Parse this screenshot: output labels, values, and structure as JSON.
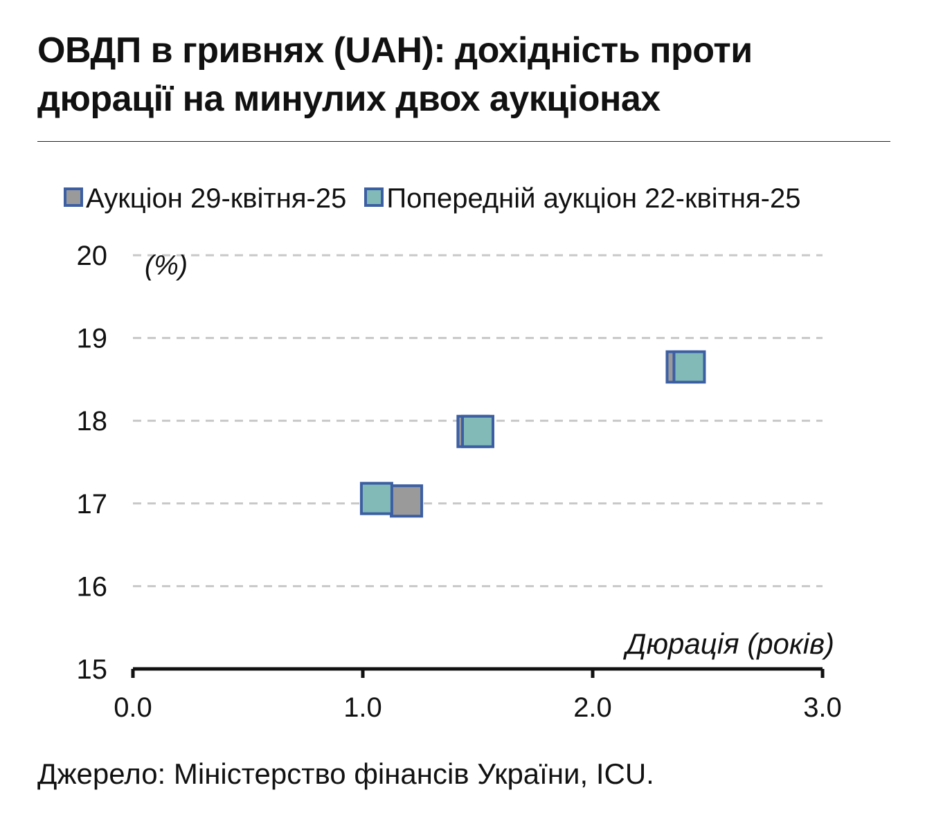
{
  "title": "ОВДП в гривнях (UAH): дохідність проти дюрації на минулих двох аукціонах",
  "source": "Джерело: Міністерство фінансів України, ICU.",
  "colors": {
    "marker_border": "#3c5fa3",
    "series_current_fill": "#9a9a9a",
    "series_previous_fill": "#82bab8",
    "grid": "#c8c8c8",
    "axis": "#111111"
  },
  "chart_data": {
    "type": "scatter",
    "xlabel": "Дюрація (років)",
    "ylabel": "(%)",
    "xlim": [
      0,
      3
    ],
    "ylim": [
      15,
      20
    ],
    "x_ticks": [
      "0.0",
      "1.0",
      "2.0",
      "3.0"
    ],
    "y_ticks": [
      "15",
      "16",
      "17",
      "18",
      "19",
      "20"
    ],
    "grid": "horizontal dashed",
    "legend_position": "top",
    "series": [
      {
        "name": "Аукціон 29-квітня-25",
        "color": "#9a9a9a",
        "points": [
          {
            "x": 1.19,
            "y": 17.03
          },
          {
            "x": 1.48,
            "y": 17.87
          },
          {
            "x": 2.39,
            "y": 18.65
          }
        ]
      },
      {
        "name": "Попередній аукціон 22-квітня-25",
        "color": "#82bab8",
        "points": [
          {
            "x": 1.06,
            "y": 17.06
          },
          {
            "x": 1.5,
            "y": 17.87
          },
          {
            "x": 2.42,
            "y": 18.65
          }
        ]
      }
    ]
  }
}
